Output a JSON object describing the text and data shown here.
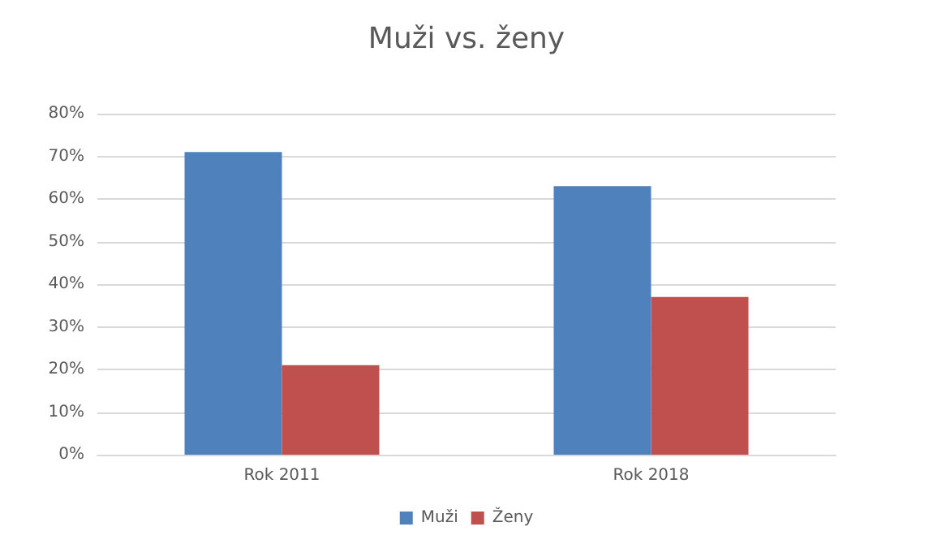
{
  "chart_data": {
    "type": "bar",
    "title": "Muži vs. ženy",
    "categories": [
      "Rok 2011",
      "Rok 2018"
    ],
    "series": [
      {
        "name": "Muži",
        "color": "#4f81bd",
        "values": [
          71,
          63
        ]
      },
      {
        "name": "Ženy",
        "color": "#c0504d",
        "values": [
          21,
          37
        ]
      }
    ],
    "ylim": [
      0,
      80
    ],
    "yticks": [
      {
        "value": 0,
        "label": "0%"
      },
      {
        "value": 10,
        "label": "10%"
      },
      {
        "value": 20,
        "label": "20%"
      },
      {
        "value": 30,
        "label": "30%"
      },
      {
        "value": 40,
        "label": "40%"
      },
      {
        "value": 50,
        "label": "50%"
      },
      {
        "value": 60,
        "label": "60%"
      },
      {
        "value": 70,
        "label": "70%"
      },
      {
        "value": 80,
        "label": "80%"
      }
    ],
    "grid": "y",
    "legend": "bottom"
  }
}
